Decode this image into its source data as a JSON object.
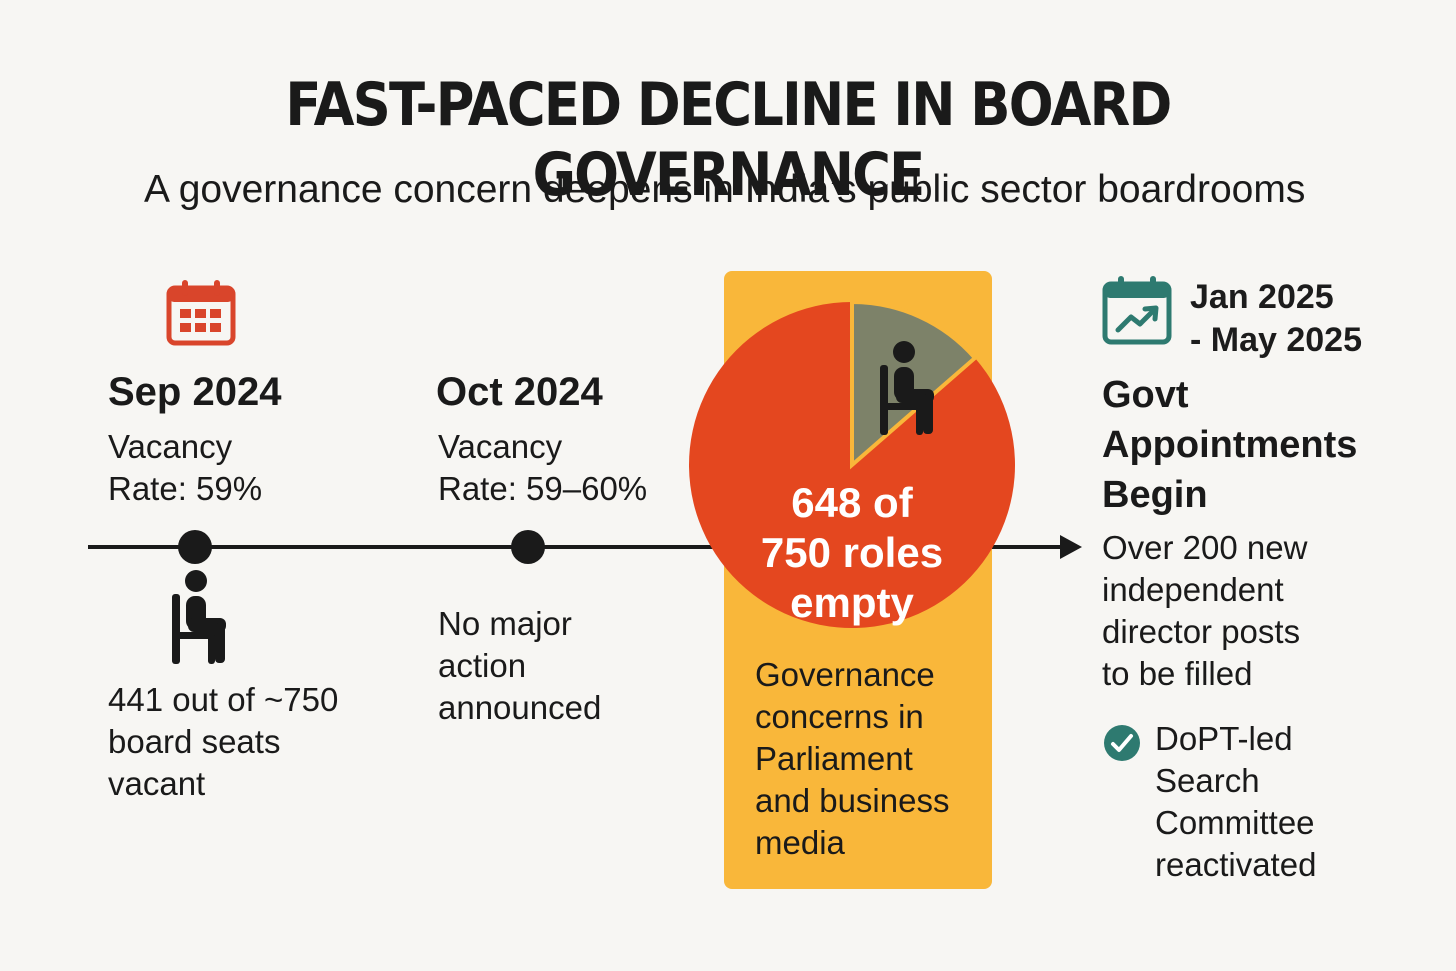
{
  "title": "FAST-PACED DECLINE IN BOARD GOVERNANCE",
  "subtitle": "A governance concern deepens in India’s public sector boardrooms",
  "colors": {
    "background": "#f7f6f3",
    "calendar_red": "#d9452b",
    "calendar_teal": "#2e7a70",
    "highlight": "#f9b73a",
    "pie_empty": "#e4471f",
    "pie_filled": "#7d8269",
    "check_teal": "#2e7a70"
  },
  "events": [
    {
      "date": "Sep 2024",
      "icon": "calendar-icon",
      "stat_lines": [
        "Vacancy",
        "Rate: 59%"
      ],
      "detail_icon": "seated-person-icon",
      "detail_lines": [
        "441 out of ~750",
        "board seats",
        "vacant"
      ]
    },
    {
      "date": "Oct 2024",
      "stat_lines": [
        "Vacancy",
        "Rate: 59–60%"
      ],
      "detail_lines": [
        "No major",
        "action",
        "announced"
      ]
    },
    {
      "pie": {
        "empty": 648,
        "total": 750,
        "label_lines": [
          "648 of",
          "750 roles",
          "empty"
        ],
        "icon": "seated-person-icon"
      },
      "detail_lines": [
        "Governance",
        "concerns in",
        "Parliament",
        "and business",
        "media"
      ]
    },
    {
      "date_lines": [
        "Jan 2025",
        "- May 2025"
      ],
      "icon": "calendar-trend-icon",
      "heading_lines": [
        "Govt",
        "Appointments",
        "Begin"
      ],
      "detail_lines": [
        "Over 200 new",
        "independent",
        "director posts",
        "to be filled"
      ],
      "check_icon": "check-circle-icon",
      "check_lines": [
        "DoPT-led",
        "Search",
        "Committee",
        "reactivated"
      ]
    }
  ]
}
